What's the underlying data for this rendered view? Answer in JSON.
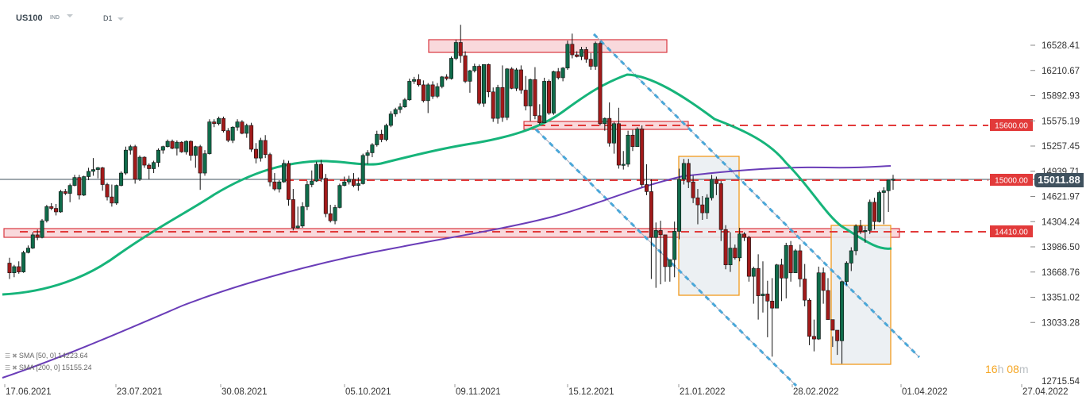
{
  "header": {
    "symbol": "US100",
    "instrument_type": "IND",
    "timeframe": "D1"
  },
  "colors": {
    "bull": "#0f6b4a",
    "bear": "#a11a1a",
    "sma50": "#16b47a",
    "sma200": "#6a3db8",
    "level": "#e23a3a",
    "zone_fill": "#f9d9dc",
    "zone_border": "#d9373f",
    "channel": "#4aa7d9",
    "box_border": "#f29a1c",
    "box_fill": "#e9edf1",
    "last_price_bg": "#3f515e"
  },
  "legend": [
    {
      "label": "SMA  [50,  0]",
      "value": "14223.64"
    },
    {
      "label": "SMA  [200,  0]",
      "value": "15155.24"
    }
  ],
  "timer": {
    "hours": "16",
    "h": "h",
    "minutes": "08",
    "m": "m"
  },
  "last_price": "15011.88",
  "chart_data": {
    "type": "candlestick",
    "title": "US100 D1",
    "xlabel": "",
    "ylabel": "",
    "y_ticks": [
      "16528.41",
      "16210.67",
      "15892.93",
      "15575.19",
      "15257.45",
      "14939.71",
      "14621.97",
      "14304.24",
      "13986.50",
      "13668.76",
      "13351.02",
      "13033.28",
      "12715.54"
    ],
    "x_ticks": [
      "17.06.2021",
      "23.07.2021",
      "30.08.2021",
      "05.10.2021",
      "09.11.2021",
      "15.12.2021",
      "21.01.2022",
      "28.02.2022",
      "01.04.2022",
      "27.04.2022"
    ],
    "ylim": [
      12715.54,
      16528.41
    ],
    "horizontal_levels": [
      {
        "price": 15600.0,
        "label": "15600.00"
      },
      {
        "price": 15000.0,
        "label": "15000.00"
      },
      {
        "price": 14410.0,
        "label": "14410.00"
      }
    ],
    "zones": [
      {
        "from_date": "early Nov 2021",
        "to_date": "late Dec 2021",
        "low": 16420,
        "high": 16600
      },
      {
        "from_date": "late Nov 2021",
        "to_date": "mid Jan 2022",
        "low": 15540,
        "high": 15640
      },
      {
        "from_date": "mid Jun 2021",
        "to_date": "mid Mar 2022",
        "low": 14350,
        "high": 14470
      }
    ],
    "consolidation_boxes": [
      {
        "from": "21.01.2022",
        "to": "10.02.2022",
        "low": 13700,
        "high": 15230
      },
      {
        "from": "07.03.2022",
        "to": "29.03.2022",
        "low": 12900,
        "high": 14520
      }
    ],
    "series": [
      {
        "name": "SMA [50, 0]",
        "last": 14223.64
      },
      {
        "name": "SMA [200, 0]",
        "last": 15155.24
      }
    ],
    "last_close": 15011.88,
    "candles": [
      [
        14060,
        14120,
        13880,
        13950
      ],
      [
        13950,
        14040,
        13900,
        14020
      ],
      [
        14020,
        14080,
        13940,
        13960
      ],
      [
        13960,
        14200,
        13950,
        14180
      ],
      [
        14180,
        14260,
        14170,
        14230
      ],
      [
        14230,
        14410,
        14220,
        14380
      ],
      [
        14380,
        14440,
        14320,
        14350
      ],
      [
        14350,
        14560,
        14340,
        14540
      ],
      [
        14540,
        14720,
        14520,
        14700
      ],
      [
        14700,
        14740,
        14660,
        14680
      ],
      [
        14680,
        14730,
        14600,
        14640
      ],
      [
        14640,
        14890,
        14630,
        14870
      ],
      [
        14870,
        14900,
        14830,
        14850
      ],
      [
        14850,
        14960,
        14750,
        14940
      ],
      [
        14940,
        15060,
        14930,
        15030
      ],
      [
        15030,
        15060,
        14780,
        14830
      ],
      [
        14830,
        15050,
        14820,
        15040
      ],
      [
        15040,
        15140,
        15000,
        15100
      ],
      [
        15100,
        15250,
        15050,
        15120
      ],
      [
        15120,
        15150,
        15020,
        15140
      ],
      [
        15140,
        15150,
        14880,
        14950
      ],
      [
        14950,
        14970,
        14770,
        14810
      ],
      [
        14810,
        14950,
        14700,
        14740
      ],
      [
        14740,
        14950,
        14720,
        14940
      ],
      [
        14940,
        15100,
        14930,
        15080
      ],
      [
        15080,
        15380,
        15060,
        15340
      ],
      [
        15340,
        15400,
        15290,
        15380
      ],
      [
        15380,
        15400,
        14960,
        15010
      ],
      [
        15010,
        15280,
        14990,
        15260
      ],
      [
        15260,
        15270,
        15140,
        15170
      ],
      [
        15170,
        15190,
        15010,
        15130
      ],
      [
        15130,
        15220,
        15080,
        15200
      ],
      [
        15200,
        15360,
        15150,
        15340
      ],
      [
        15340,
        15390,
        15300,
        15380
      ],
      [
        15380,
        15460,
        15370,
        15440
      ],
      [
        15440,
        15460,
        15350,
        15360
      ],
      [
        15360,
        15450,
        15280,
        15430
      ],
      [
        15430,
        15440,
        15310,
        15320
      ],
      [
        15320,
        15450,
        15290,
        15440
      ],
      [
        15440,
        15450,
        15220,
        15280
      ],
      [
        15280,
        15390,
        15140,
        15380
      ],
      [
        15380,
        15400,
        14890,
        15080
      ],
      [
        15080,
        15340,
        15050,
        15300
      ],
      [
        15300,
        15690,
        15290,
        15660
      ],
      [
        15660,
        15690,
        15600,
        15640
      ],
      [
        15640,
        15720,
        15620,
        15700
      ],
      [
        15700,
        15720,
        15540,
        15560
      ],
      [
        15560,
        15590,
        15430,
        15450
      ],
      [
        15450,
        15610,
        15420,
        15600
      ],
      [
        15600,
        15690,
        15560,
        15660
      ],
      [
        15660,
        15680,
        15520,
        15530
      ],
      [
        15530,
        15640,
        15480,
        15620
      ],
      [
        15620,
        15650,
        15320,
        15350
      ],
      [
        15350,
        15420,
        15190,
        15250
      ],
      [
        15250,
        15480,
        15210,
        15450
      ],
      [
        15450,
        15510,
        15250,
        15290
      ],
      [
        15290,
        15310,
        14930,
        14980
      ],
      [
        14980,
        15080,
        14880,
        14900
      ],
      [
        14900,
        15000,
        14860,
        14980
      ],
      [
        14980,
        15230,
        14970,
        15190
      ],
      [
        15190,
        15220,
        14710,
        14780
      ],
      [
        14780,
        14900,
        14430,
        14460
      ],
      [
        14460,
        14700,
        14450,
        14480
      ],
      [
        14480,
        14750,
        14460,
        14700
      ],
      [
        14700,
        14990,
        14660,
        14950
      ],
      [
        14950,
        15110,
        14920,
        14990
      ],
      [
        14990,
        15210,
        14980,
        15180
      ],
      [
        15180,
        15230,
        14980,
        15020
      ],
      [
        15020,
        15070,
        14580,
        14620
      ],
      [
        14620,
        14720,
        14520,
        14540
      ],
      [
        14540,
        14720,
        14500,
        14690
      ],
      [
        14690,
        14960,
        14680,
        14940
      ],
      [
        14940,
        15040,
        14930,
        14980
      ],
      [
        14980,
        15050,
        14950,
        15010
      ],
      [
        15010,
        15080,
        14920,
        14940
      ],
      [
        14940,
        15030,
        14880,
        14960
      ],
      [
        14960,
        15300,
        14950,
        15280
      ],
      [
        15280,
        15340,
        15180,
        15310
      ],
      [
        15310,
        15420,
        15260,
        15400
      ],
      [
        15400,
        15560,
        15380,
        15520
      ],
      [
        15520,
        15570,
        15430,
        15460
      ],
      [
        15460,
        15640,
        15440,
        15620
      ],
      [
        15620,
        15780,
        15600,
        15750
      ],
      [
        15750,
        15820,
        15720,
        15800
      ],
      [
        15800,
        15870,
        15760,
        15830
      ],
      [
        15830,
        15930,
        15820,
        15910
      ],
      [
        15910,
        16150,
        15900,
        16120
      ],
      [
        16120,
        16170,
        16090,
        16140
      ],
      [
        16140,
        16200,
        16060,
        16080
      ],
      [
        16080,
        16130,
        15880,
        15900
      ],
      [
        15900,
        16100,
        15760,
        16080
      ],
      [
        16080,
        16120,
        15920,
        15950
      ],
      [
        15950,
        16100,
        15930,
        16060
      ],
      [
        16060,
        16180,
        16040,
        16170
      ],
      [
        16170,
        16200,
        16130,
        16150
      ],
      [
        16150,
        16400,
        16140,
        16380
      ],
      [
        16380,
        16590,
        16360,
        16560
      ],
      [
        16560,
        16760,
        16330,
        16410
      ],
      [
        16410,
        16460,
        16100,
        16120
      ],
      [
        16120,
        16250,
        15990,
        16240
      ],
      [
        16240,
        16320,
        16220,
        16290
      ],
      [
        16290,
        16310,
        15850,
        15870
      ],
      [
        15870,
        16310,
        15830,
        16310
      ],
      [
        16310,
        16320,
        15940,
        16000
      ],
      [
        16000,
        16050,
        15660,
        15700
      ],
      [
        15700,
        16080,
        15640,
        16050
      ],
      [
        16050,
        16300,
        15660,
        15710
      ],
      [
        15710,
        16270,
        15680,
        16260
      ],
      [
        16260,
        16280,
        16030,
        16040
      ],
      [
        16040,
        16270,
        16010,
        16250
      ],
      [
        16250,
        16300,
        15980,
        16020
      ],
      [
        16020,
        16180,
        15790,
        15840
      ],
      [
        15840,
        16150,
        15670,
        16140
      ],
      [
        16140,
        16280,
        15690,
        15730
      ],
      [
        15730,
        15860,
        15630,
        15650
      ],
      [
        15650,
        16160,
        15650,
        16120
      ],
      [
        16120,
        16140,
        15740,
        15760
      ],
      [
        15760,
        16240,
        15740,
        16230
      ],
      [
        16230,
        16270,
        16140,
        16160
      ],
      [
        16160,
        16280,
        16120,
        16270
      ],
      [
        16270,
        16580,
        16250,
        16540
      ],
      [
        16540,
        16660,
        16380,
        16420
      ],
      [
        16420,
        16460,
        16390,
        16400
      ],
      [
        16400,
        16510,
        16360,
        16480
      ],
      [
        16480,
        16510,
        16330,
        16370
      ],
      [
        16370,
        16440,
        16250,
        16290
      ],
      [
        16290,
        16570,
        16250,
        16550
      ],
      [
        16550,
        16570,
        15620,
        15640
      ],
      [
        15640,
        15710,
        15560,
        15700
      ],
      [
        15700,
        15880,
        15380,
        15420
      ],
      [
        15420,
        15660,
        15300,
        15640
      ],
      [
        15640,
        15820,
        15130,
        15170
      ],
      [
        15170,
        15330,
        15120,
        15180
      ],
      [
        15180,
        15560,
        15150,
        15510
      ],
      [
        15510,
        15570,
        15330,
        15380
      ],
      [
        15380,
        15600,
        15410,
        15580
      ],
      [
        15580,
        15620,
        14920,
        14950
      ],
      [
        14950,
        15180,
        14830,
        14870
      ],
      [
        14870,
        15010,
        13880,
        14350
      ],
      [
        14350,
        14520,
        13780,
        14430
      ],
      [
        14430,
        14540,
        13820,
        14380
      ],
      [
        14380,
        14230,
        13850,
        14020
      ],
      [
        14020,
        14060,
        13850,
        14100
      ],
      [
        14100,
        14530,
        13900,
        14420
      ],
      [
        14420,
        15130,
        14330,
        15010
      ],
      [
        15010,
        15240,
        14950,
        15190
      ],
      [
        15190,
        15240,
        14910,
        14980
      ],
      [
        14980,
        15050,
        14740,
        14800
      ],
      [
        14800,
        14900,
        14500,
        14720
      ],
      [
        14720,
        14820,
        14550,
        14630
      ],
      [
        14630,
        14840,
        14560,
        14800
      ],
      [
        14800,
        15060,
        14770,
        15010
      ],
      [
        15010,
        15040,
        14830,
        14960
      ],
      [
        14960,
        14990,
        14310,
        14440
      ],
      [
        14440,
        14490,
        13990,
        14040
      ],
      [
        14040,
        14410,
        13960,
        14230
      ],
      [
        14230,
        14270,
        14100,
        14120
      ],
      [
        14120,
        14460,
        14080,
        14390
      ],
      [
        14390,
        14410,
        14310,
        14350
      ],
      [
        14350,
        14370,
        13850,
        13910
      ],
      [
        13910,
        14020,
        13600,
        14000
      ],
      [
        14000,
        14160,
        13420,
        13690
      ],
      [
        13690,
        14080,
        13500,
        13710
      ],
      [
        13710,
        13860,
        13220,
        13630
      ],
      [
        13630,
        13890,
        13000,
        13550
      ],
      [
        13550,
        14050,
        13580,
        14040
      ],
      [
        14040,
        14110,
        13630,
        13890
      ],
      [
        13890,
        14290,
        13660,
        14260
      ],
      [
        14260,
        14310,
        13850,
        13950
      ],
      [
        13950,
        14220,
        13950,
        14200
      ],
      [
        14200,
        14270,
        13790,
        13880
      ],
      [
        13880,
        14050,
        13570,
        13640
      ],
      [
        13640,
        13660,
        13130,
        13230
      ],
      [
        13230,
        13420,
        13060,
        13200
      ],
      [
        13200,
        14020,
        13190,
        13950
      ],
      [
        13950,
        14010,
        13600,
        13750
      ],
      [
        13750,
        13890,
        13600,
        13420
      ],
      [
        13420,
        13230,
        13110,
        13300
      ],
      [
        13300,
        13290,
        13020,
        13180
      ],
      [
        13180,
        13860,
        12920,
        13850
      ],
      [
        13850,
        14080,
        13810,
        14060
      ],
      [
        14060,
        14240,
        13970,
        14200
      ],
      [
        14200,
        14500,
        14150,
        14480
      ],
      [
        14480,
        14550,
        14390,
        14420
      ],
      [
        14420,
        14480,
        14290,
        14430
      ],
      [
        14430,
        14780,
        14390,
        14750
      ],
      [
        14750,
        14800,
        14440,
        14530
      ],
      [
        14530,
        14880,
        14520,
        14860
      ],
      [
        14860,
        14920,
        14500,
        14880
      ],
      [
        14880,
        14990,
        14640,
        15000
      ],
      [
        15000,
        15060,
        14890,
        15011.88
      ]
    ]
  }
}
